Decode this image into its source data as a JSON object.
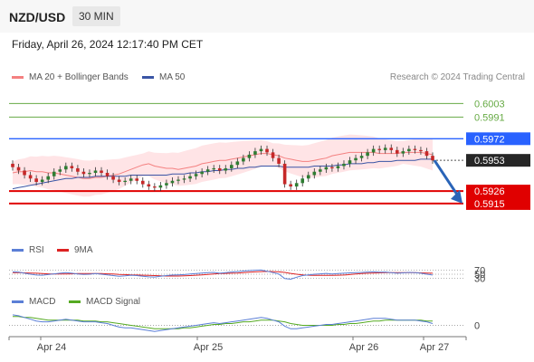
{
  "header": {
    "pair": "NZD/USD",
    "timeframe": "30 MIN"
  },
  "timestamp": "Friday, April 26, 2024 12:17:40 PM CET",
  "credit": "Research © 2024 Trading Central",
  "colors": {
    "price_up": "#2e7d32",
    "price_down": "#c62828",
    "resistance": "#2962ff",
    "support": "#e00000",
    "target_green": "#66aa44",
    "bollinger": "#ffcdd2",
    "ma20": "#f48080",
    "ma50": "#3a55a5",
    "rsi": "#5b7fd6",
    "rsi_ma": "#dd2222",
    "macd": "#5b7fd6",
    "macd_signal": "#55aa22",
    "forecast_arrow": "#2a64b8"
  },
  "chart_data": [
    {
      "type": "candlestick",
      "title": "",
      "legend": [
        {
          "name": "MA 20 + Bollinger Bands",
          "color": "#f48080"
        },
        {
          "name": "MA 50",
          "color": "#3a55a5"
        }
      ],
      "ylim": [
        0.5903,
        0.6016
      ],
      "x_ticks": [
        "Apr 24",
        "Apr 25",
        "Apr 26",
        "Apr 27"
      ],
      "levels": [
        {
          "value": 0.6003,
          "label": "0.6003",
          "kind": "resistance-2",
          "color": "#66aa44"
        },
        {
          "value": 0.5991,
          "label": "0.5991",
          "kind": "resistance-1",
          "color": "#66aa44"
        },
        {
          "value": 0.5972,
          "label": "0.5972",
          "kind": "pivot",
          "color": "#2962ff"
        },
        {
          "value": 0.5953,
          "label": "0.5953",
          "kind": "last-price",
          "color": "#333333"
        },
        {
          "value": 0.5926,
          "label": "0.5926",
          "kind": "support-1",
          "color": "#e00000"
        },
        {
          "value": 0.5915,
          "label": "0.5915",
          "kind": "support-2",
          "color": "#e00000"
        }
      ],
      "forecast": {
        "from": 0.5953,
        "to": 0.5915,
        "direction": "down"
      },
      "series": [
        {
          "name": "price",
          "close": [
            0.5947,
            0.5944,
            0.594,
            0.5937,
            0.5934,
            0.5936,
            0.5939,
            0.5943,
            0.5945,
            0.5948,
            0.5946,
            0.5943,
            0.5941,
            0.5942,
            0.5944,
            0.5942,
            0.5939,
            0.5936,
            0.5934,
            0.5935,
            0.5937,
            0.5935,
            0.5932,
            0.593,
            0.5929,
            0.5931,
            0.5933,
            0.5935,
            0.5936,
            0.5937,
            0.5939,
            0.5941,
            0.5943,
            0.5945,
            0.5946,
            0.5944,
            0.5946,
            0.5949,
            0.5952,
            0.5955,
            0.5958,
            0.5961,
            0.5963,
            0.596,
            0.5955,
            0.595,
            0.5932,
            0.593,
            0.5933,
            0.5937,
            0.594,
            0.5943,
            0.5945,
            0.5947,
            0.5946,
            0.5948,
            0.595,
            0.5953,
            0.5955,
            0.5957,
            0.596,
            0.5963,
            0.5962,
            0.5964,
            0.5962,
            0.5959,
            0.5961,
            0.5963,
            0.5962,
            0.5961,
            0.5957,
            0.5953
          ]
        },
        {
          "name": "MA 20",
          "values": [
            0.5942,
            0.5943,
            0.5943,
            0.5944,
            0.5943,
            0.5943,
            0.5942,
            0.5942,
            0.5941,
            0.594,
            0.5939,
            0.5938,
            0.5937,
            0.5937,
            0.5938,
            0.5938,
            0.5939,
            0.594,
            0.5941,
            0.5943,
            0.5945,
            0.5947,
            0.5949,
            0.595,
            0.5948,
            0.5947,
            0.5946,
            0.5946,
            0.5945,
            0.5946,
            0.5947,
            0.5948,
            0.595,
            0.5951,
            0.5952,
            0.5953,
            0.5953,
            0.5954,
            0.5955,
            0.5956,
            0.5957,
            0.5958,
            0.5959,
            0.5959,
            0.5958,
            0.5957,
            0.5955,
            0.5954,
            0.5953,
            0.5952,
            0.5952,
            0.5953,
            0.5954,
            0.5955,
            0.5957,
            0.5958,
            0.5959,
            0.596,
            0.596,
            0.596,
            0.596,
            0.596,
            0.5959,
            0.5959,
            0.5959,
            0.5959,
            0.596,
            0.596,
            0.596,
            0.596,
            0.5959,
            0.5958
          ]
        },
        {
          "name": "MA 50",
          "values": [
            0.5928,
            0.5929,
            0.593,
            0.5931,
            0.5932,
            0.5933,
            0.5934,
            0.5935,
            0.5936,
            0.5937,
            0.5937,
            0.5938,
            0.5938,
            0.5938,
            0.5939,
            0.5939,
            0.5939,
            0.5939,
            0.5939,
            0.5939,
            0.594,
            0.594,
            0.594,
            0.594,
            0.594,
            0.594,
            0.594,
            0.5941,
            0.5941,
            0.5941,
            0.5942,
            0.5942,
            0.5943,
            0.5943,
            0.5944,
            0.5944,
            0.5945,
            0.5945,
            0.5946,
            0.5946,
            0.5947,
            0.5947,
            0.5948,
            0.5948,
            0.5948,
            0.5948,
            0.5947,
            0.5947,
            0.5947,
            0.5947,
            0.5947,
            0.5948,
            0.5948,
            0.5948,
            0.5948,
            0.5949,
            0.5949,
            0.595,
            0.595,
            0.595,
            0.5951,
            0.5951,
            0.5952,
            0.5952,
            0.5952,
            0.5953,
            0.5953,
            0.5953,
            0.5953,
            0.5954,
            0.5954,
            0.5954
          ]
        }
      ]
    },
    {
      "type": "line",
      "title": "",
      "legend": [
        {
          "name": "RSI",
          "color": "#5b7fd6"
        },
        {
          "name": "9MA",
          "color": "#dd2222"
        }
      ],
      "ylim": [
        0,
        100
      ],
      "y_ticks": [
        70,
        50,
        30
      ],
      "series": [
        {
          "name": "RSI",
          "values": [
            62,
            61,
            55,
            50,
            46,
            45,
            48,
            52,
            55,
            58,
            55,
            51,
            49,
            50,
            53,
            50,
            47,
            43,
            40,
            42,
            45,
            43,
            40,
            37,
            36,
            40,
            43,
            46,
            47,
            48,
            51,
            53,
            56,
            58,
            59,
            55,
            58,
            61,
            63,
            66,
            68,
            70,
            71,
            65,
            58,
            51,
            28,
            25,
            35,
            43,
            47,
            50,
            52,
            54,
            51,
            53,
            55,
            57,
            58,
            59,
            61,
            62,
            60,
            61,
            58,
            55,
            57,
            59,
            58,
            55,
            50,
            46
          ]
        },
        {
          "name": "9MA",
          "values": [
            58,
            58,
            57,
            56,
            55,
            53,
            52,
            51,
            51,
            51,
            52,
            53,
            53,
            53,
            53,
            53,
            52,
            51,
            49,
            48,
            47,
            46,
            45,
            44,
            43,
            42,
            41,
            41,
            41,
            42,
            43,
            45,
            47,
            49,
            51,
            53,
            54,
            55,
            56,
            58,
            60,
            62,
            63,
            64,
            63,
            62,
            59,
            54,
            50,
            47,
            45,
            44,
            44,
            44,
            44,
            45,
            46,
            48,
            51,
            53,
            55,
            56,
            57,
            58,
            58,
            58,
            58,
            58,
            58,
            57,
            56,
            55
          ]
        }
      ]
    },
    {
      "type": "line",
      "title": "",
      "legend": [
        {
          "name": "MACD",
          "color": "#5b7fd6"
        },
        {
          "name": "MACD Signal",
          "color": "#55aa22"
        }
      ],
      "ylim": [
        -0.0012,
        0.0014
      ],
      "y_ticks": [
        0
      ],
      "series": [
        {
          "name": "MACD",
          "values": [
            0.0012,
            0.0011,
            0.0009,
            0.0007,
            0.0005,
            0.0004,
            0.0004,
            0.0005,
            0.0006,
            0.0007,
            0.0006,
            0.0005,
            0.0004,
            0.0004,
            0.0004,
            0.0003,
            0.0002,
            0.0,
            -0.0002,
            -0.0003,
            -0.0003,
            -0.0004,
            -0.0005,
            -0.0006,
            -0.0007,
            -0.0006,
            -0.0005,
            -0.0004,
            -0.0003,
            -0.0002,
            -0.0001,
            0.0,
            0.0001,
            0.0002,
            0.0003,
            0.0002,
            0.0003,
            0.0004,
            0.0005,
            0.0006,
            0.0007,
            0.0008,
            0.0009,
            0.0008,
            0.0006,
            0.0004,
            -0.0001,
            -0.0004,
            -0.0004,
            -0.0003,
            -0.0002,
            -0.0001,
            0.0,
            0.0001,
            0.0001,
            0.0002,
            0.0003,
            0.0004,
            0.0005,
            0.0006,
            0.0007,
            0.0008,
            0.0008,
            0.0008,
            0.0007,
            0.0006,
            0.0006,
            0.0006,
            0.0006,
            0.0005,
            0.0004,
            0.0002
          ]
        },
        {
          "name": "MACD Signal",
          "values": [
            0.001,
            0.001,
            0.0009,
            0.0009,
            0.0008,
            0.0007,
            0.0006,
            0.0006,
            0.0006,
            0.0006,
            0.0006,
            0.0006,
            0.0005,
            0.0005,
            0.0005,
            0.0004,
            0.0004,
            0.0003,
            0.0002,
            0.0001,
            0.0,
            -0.0001,
            -0.0002,
            -0.0003,
            -0.0004,
            -0.0004,
            -0.0004,
            -0.0004,
            -0.0004,
            -0.0003,
            -0.0003,
            -0.0002,
            -0.0001,
            0.0,
            0.0001,
            0.0001,
            0.0002,
            0.0002,
            0.0003,
            0.0004,
            0.0004,
            0.0005,
            0.0006,
            0.0006,
            0.0006,
            0.0005,
            0.0004,
            0.0002,
            0.0001,
            0.0,
            0.0,
            0.0,
            0.0,
            0.0,
            0.0,
            0.0001,
            0.0001,
            0.0002,
            0.0002,
            0.0003,
            0.0004,
            0.0005,
            0.0005,
            0.0006,
            0.0006,
            0.0006,
            0.0006,
            0.0006,
            0.0006,
            0.0006,
            0.0005,
            0.0005
          ]
        }
      ]
    }
  ]
}
